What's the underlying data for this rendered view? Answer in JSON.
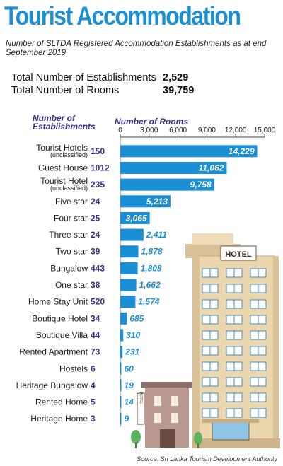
{
  "header": {
    "title": "Tourist Accommodation",
    "subtitle": "Number of SLTDA Registered Accommodation Establishments as at end September 2019"
  },
  "totals": {
    "establishments_label": "Total Number of Establishments",
    "establishments_value": "2,529",
    "rooms_label": "Total Number of Rooms",
    "rooms_value": "39,759"
  },
  "column_headers": {
    "establishments": "Number of Establishments",
    "rooms": "Number of Rooms"
  },
  "source": "Source: Sri Lanka Tourism Development Authority",
  "illustration": {
    "hotel_sign": "HOTEL",
    "small_sign": "HOTEL"
  },
  "colors": {
    "accent": "#1b8fd3",
    "establishments": "#3b2f86",
    "building": "#e8cfa3",
    "window": "#3a8fc6"
  },
  "chart_data": {
    "type": "bar",
    "orientation": "horizontal",
    "categories": [
      "Tourist Hotels",
      "Guest House",
      "Tourist Hotel",
      "Five star",
      "Four star",
      "Three star",
      "Two star",
      "Bungalow",
      "One star",
      "Home Stay Unit",
      "Boutique Hotel",
      "Boutique Villa",
      "Rented Apartment",
      "Hostels",
      "Heritage Bungalow",
      "Rented Home",
      "Heritage Home"
    ],
    "category_notes": [
      "(unclassified)",
      "",
      "(unclassified)",
      "",
      "",
      "",
      "",
      "",
      "",
      "",
      "",
      "",
      "",
      "",
      "",
      "",
      ""
    ],
    "establishments": [
      150,
      1012,
      235,
      24,
      25,
      24,
      39,
      443,
      38,
      520,
      34,
      44,
      73,
      6,
      4,
      5,
      3
    ],
    "series": [
      {
        "name": "Number of Rooms",
        "values": [
          14229,
          11062,
          9758,
          5213,
          3065,
          2411,
          1878,
          1808,
          1662,
          1574,
          685,
          310,
          231,
          60,
          19,
          14,
          9
        ]
      }
    ],
    "value_labels": [
      "14,229",
      "11,062",
      "9,758",
      "5,213",
      "3,065",
      "2,411",
      "1,878",
      "1,808",
      "1,662",
      "1,574",
      "685",
      "310",
      "231",
      "60",
      "19",
      "14",
      "9"
    ],
    "xlim": [
      0,
      15000
    ],
    "xticks": [
      0,
      3000,
      6000,
      9000,
      12000,
      15000
    ],
    "xtick_labels": [
      "0",
      "3,000",
      "6,000",
      "9,000",
      "12,000",
      "15,000"
    ],
    "grid": false,
    "legend": "none"
  }
}
